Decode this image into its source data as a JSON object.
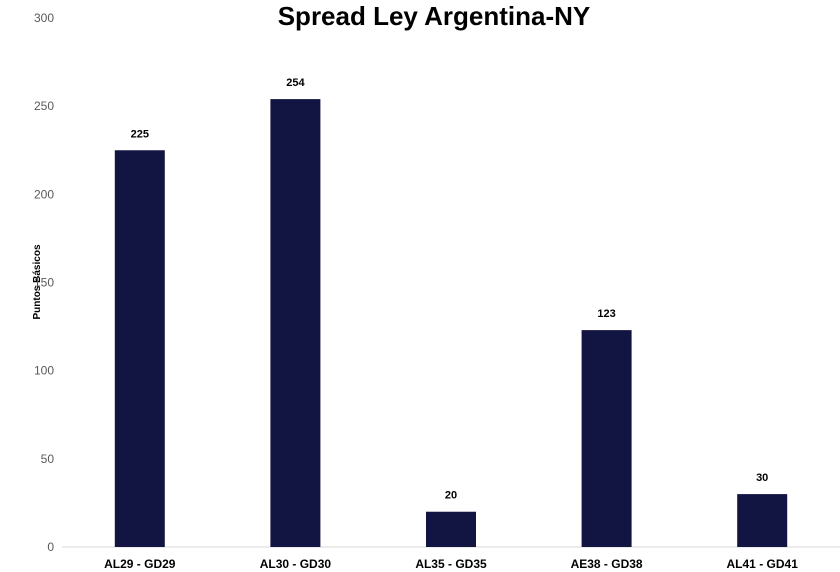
{
  "chart_data": {
    "type": "bar",
    "title": "Spread Ley Argentina-NY",
    "xlabel": "",
    "ylabel": "Puntos Básicos",
    "ylim": [
      0,
      300
    ],
    "yticks": [
      0,
      50,
      100,
      150,
      200,
      250,
      300
    ],
    "categories": [
      "AL29 - GD29",
      "AL30 - GD30",
      "AL35 - GD35",
      "AE38 - GD38",
      "AL41 - GD41"
    ],
    "values": [
      225,
      254,
      20,
      123,
      30
    ],
    "data_labels": true,
    "grid": false,
    "legend": "none",
    "colors": {
      "bar": "#121542",
      "axis": "#d9d9d9"
    }
  }
}
